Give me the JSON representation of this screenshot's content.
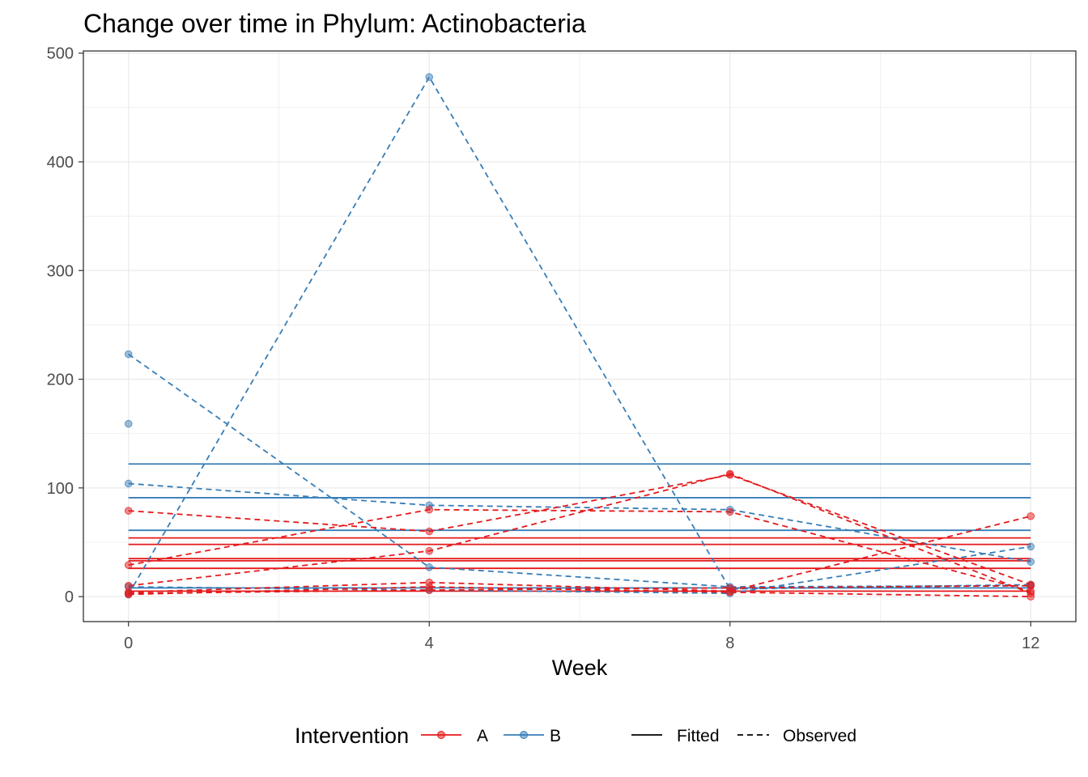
{
  "chart_data": {
    "type": "line",
    "title": "Change over time in Phylum: Actinobacteria",
    "xlabel": "Week",
    "ylabel": "",
    "xlim": [
      -0.6,
      12.6
    ],
    "ylim": [
      -23,
      502
    ],
    "x_ticks": [
      0,
      4,
      8,
      12
    ],
    "y_ticks": [
      0,
      100,
      200,
      300,
      400,
      500
    ],
    "grid": true,
    "legend_position": "bottom",
    "legend": {
      "color_title": "Intervention",
      "color_items": [
        {
          "label": "A",
          "color": "#e41a1c"
        },
        {
          "label": "B",
          "color": "#377eb8"
        }
      ],
      "linetype_items": [
        {
          "label": "Fitted",
          "dash": "solid"
        },
        {
          "label": "Observed",
          "dash": "dashed"
        }
      ]
    },
    "colors": {
      "A": "#e41a1c",
      "B": "#377eb8"
    },
    "fitted": [
      {
        "group": "B",
        "y": 122
      },
      {
        "group": "B",
        "y": 91
      },
      {
        "group": "B",
        "y": 61
      },
      {
        "group": "B",
        "y": 8
      },
      {
        "group": "A",
        "y": 54
      },
      {
        "group": "A",
        "y": 48
      },
      {
        "group": "A",
        "y": 35
      },
      {
        "group": "A",
        "y": 33
      },
      {
        "group": "A",
        "y": 26
      },
      {
        "group": "A",
        "y": 5
      }
    ],
    "observed": [
      {
        "group": "B",
        "x": [
          0,
          4,
          8,
          12
        ],
        "y": [
          2,
          478,
          7,
          11
        ]
      },
      {
        "group": "B",
        "x": [
          0,
          4,
          8,
          12
        ],
        "y": [
          223,
          27,
          9,
          10
        ]
      },
      {
        "group": "B",
        "x": [
          0,
          4,
          8,
          12
        ],
        "y": [
          104,
          84,
          80,
          32
        ]
      },
      {
        "group": "B",
        "x": [
          0,
          4,
          8,
          12
        ],
        "y": [
          9,
          6,
          3,
          46
        ]
      },
      {
        "group": "B",
        "x": [
          0
        ],
        "y": [
          159
        ]
      },
      {
        "group": "A",
        "x": [
          0,
          4,
          8,
          12
        ],
        "y": [
          79,
          60,
          112,
          11
        ]
      },
      {
        "group": "A",
        "x": [
          0,
          4,
          8,
          12
        ],
        "y": [
          29,
          80,
          78,
          5
        ]
      },
      {
        "group": "A",
        "x": [
          0,
          4,
          8,
          12
        ],
        "y": [
          10,
          42,
          113,
          3
        ]
      },
      {
        "group": "A",
        "x": [
          0,
          4,
          8,
          12
        ],
        "y": [
          4,
          13,
          5,
          74
        ]
      },
      {
        "group": "A",
        "x": [
          0,
          4,
          8,
          12
        ],
        "y": [
          2,
          9,
          4,
          0
        ]
      },
      {
        "group": "A",
        "x": [
          0,
          4,
          8,
          12
        ],
        "y": [
          3,
          6,
          8,
          10
        ]
      }
    ]
  }
}
